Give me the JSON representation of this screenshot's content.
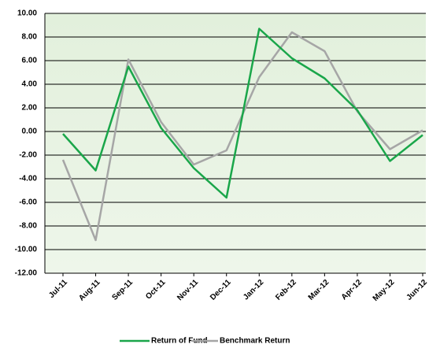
{
  "chart_data": {
    "type": "line",
    "categories": [
      "Jul-11",
      "Aug-11",
      "Sep-11",
      "Oct-11",
      "Nov-11",
      "Dec-11",
      "Jan-12",
      "Feb-12",
      "Mar-12",
      "Apr-12",
      "May-12",
      "Jun-12"
    ],
    "series": [
      {
        "name": "Return of Fund",
        "color": "#1aa64a",
        "values": [
          -0.2,
          -3.3,
          5.5,
          0.3,
          -3.1,
          -5.6,
          8.7,
          6.2,
          4.5,
          1.8,
          -2.5,
          -0.3
        ]
      },
      {
        "name": "Benchmark Return",
        "color": "#a6a6a6",
        "values": [
          -2.4,
          -9.2,
          6.1,
          0.8,
          -2.8,
          -1.6,
          4.6,
          8.4,
          6.8,
          1.7,
          -1.5,
          0.1
        ]
      }
    ],
    "ylim": [
      -12,
      10
    ],
    "yticks": [
      {
        "value": -12,
        "label": "-12.00"
      },
      {
        "value": -10,
        "label": "-10.00"
      },
      {
        "value": -8,
        "label": "-8.00"
      },
      {
        "value": -6,
        "label": "-6.00"
      },
      {
        "value": -4,
        "label": "-4.00"
      },
      {
        "value": -2,
        "label": "-2.00"
      },
      {
        "value": 0,
        "label": "0.00"
      },
      {
        "value": 2,
        "label": "2.00"
      },
      {
        "value": 4,
        "label": "4.00"
      },
      {
        "value": 6,
        "label": "6.00"
      },
      {
        "value": 8,
        "label": "8.00"
      },
      {
        "value": 10,
        "label": "10.00"
      }
    ],
    "grid": true,
    "legend": "bottom"
  }
}
